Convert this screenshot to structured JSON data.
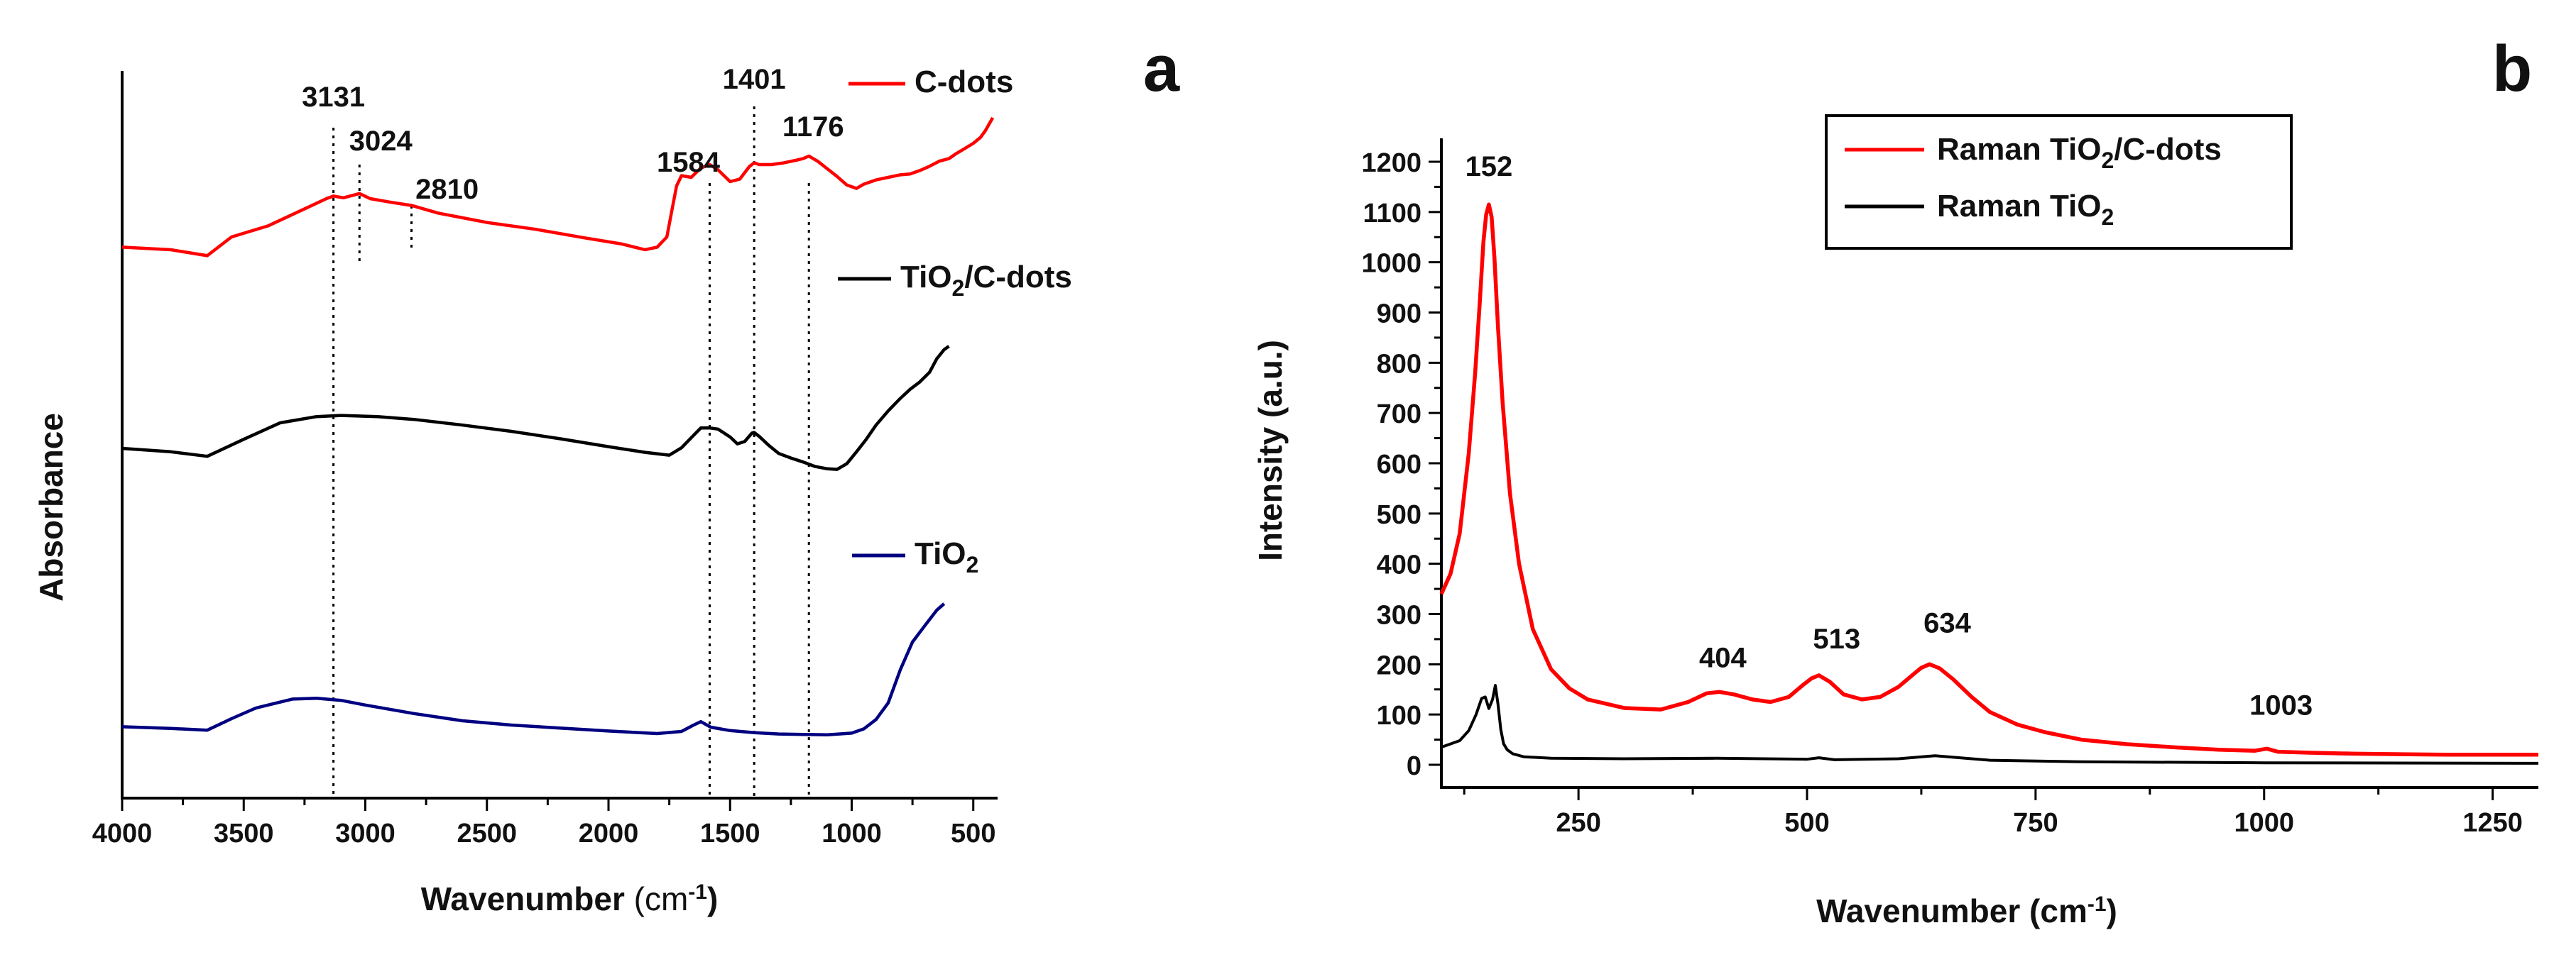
{
  "chart_data": [
    {
      "type": "line",
      "panel_label": "a",
      "title": "",
      "xlabel": "Wavenumber",
      "xunit_base": "(cm",
      "xunit_sup": "-1",
      "xunit_end": ")",
      "ylabel": "Absorbance",
      "xlim": [
        4000,
        400
      ],
      "xticks": [
        4000,
        3500,
        3000,
        2500,
        2000,
        1500,
        1000,
        500
      ],
      "xtick_labels": [
        "4000",
        "3500",
        "3000",
        "2500",
        "2000",
        "1500",
        "1000",
        "500"
      ],
      "ylim": [
        0,
        100
      ],
      "series": [
        {
          "name": "C-dots",
          "legend_base": "C-dots",
          "legend_sub": "",
          "legend_end": "",
          "color": "#ff0000",
          "x": [
            4000,
            3800,
            3650,
            3550,
            3400,
            3250,
            3160,
            3131,
            3090,
            3050,
            3024,
            2980,
            2900,
            2810,
            2700,
            2500,
            2300,
            2100,
            1950,
            1850,
            1800,
            1760,
            1740,
            1720,
            1700,
            1660,
            1620,
            1584,
            1550,
            1500,
            1460,
            1420,
            1401,
            1380,
            1330,
            1280,
            1230,
            1200,
            1176,
            1140,
            1100,
            1060,
            1020,
            980,
            950,
            900,
            850,
            800,
            760,
            720,
            680,
            640,
            600,
            570,
            540,
            500,
            470,
            450,
            430,
            420
          ],
          "y": [
            84.3,
            84,
            83.3,
            85.5,
            86.8,
            88.8,
            90,
            90.3,
            90.1,
            90.4,
            90.6,
            90,
            89.6,
            89.2,
            88.3,
            87.2,
            86.4,
            85.4,
            84.7,
            84,
            84.3,
            85.5,
            88.5,
            91.5,
            92.7,
            92.5,
            93.6,
            94,
            93.4,
            92,
            92.3,
            93.8,
            94.2,
            94,
            94,
            94.2,
            94.5,
            94.7,
            95,
            94.4,
            93.5,
            92.6,
            91.6,
            91.2,
            91.7,
            92.2,
            92.5,
            92.8,
            92.9,
            93.3,
            93.8,
            94.4,
            94.7,
            95.3,
            95.8,
            96.5,
            97.2,
            98,
            99,
            99.5
          ]
        },
        {
          "name": "TiO2/C-dots",
          "legend_base": "TiO",
          "legend_sub": "2",
          "legend_end": "/C-dots",
          "color": "#000000",
          "x": [
            4000,
            3800,
            3650,
            3500,
            3350,
            3200,
            3100,
            2950,
            2800,
            2600,
            2400,
            2200,
            2000,
            1850,
            1750,
            1700,
            1650,
            1620,
            1584,
            1550,
            1500,
            1470,
            1440,
            1410,
            1401,
            1380,
            1340,
            1300,
            1250,
            1200,
            1150,
            1100,
            1060,
            1020,
            980,
            940,
            900,
            850,
            800,
            760,
            720,
            680,
            650,
            620,
            600
          ],
          "y": [
            51,
            50.4,
            49.6,
            52.6,
            55.5,
            56.6,
            56.8,
            56.6,
            56.1,
            55.1,
            54,
            52.7,
            51.3,
            50.3,
            49.8,
            51.1,
            53.3,
            54.6,
            54.6,
            54.4,
            53,
            51.8,
            52.2,
            53.7,
            53.8,
            53.1,
            51.5,
            50.1,
            49.3,
            48.6,
            47.8,
            47.4,
            47.3,
            48.3,
            50.4,
            52.6,
            55.1,
            57.6,
            59.8,
            61.4,
            62.7,
            64.4,
            66.8,
            68.4,
            69
          ]
        },
        {
          "name": "TiO2",
          "legend_base": "TiO",
          "legend_sub": "2",
          "legend_end": "",
          "color": "#000080",
          "x": [
            4000,
            3800,
            3650,
            3550,
            3450,
            3300,
            3200,
            3100,
            3000,
            2800,
            2600,
            2400,
            2200,
            2000,
            1800,
            1700,
            1650,
            1620,
            1580,
            1500,
            1400,
            1300,
            1200,
            1100,
            1000,
            950,
            900,
            850,
            800,
            750,
            700,
            650,
            620
          ],
          "y": [
            12.6,
            12.2,
            11.8,
            14.5,
            17,
            19.1,
            19.3,
            18.8,
            17.7,
            15.7,
            14,
            13,
            12.3,
            11.6,
            11,
            11.5,
            13,
            13.8,
            12.5,
            11.7,
            11.2,
            10.9,
            10.8,
            10.7,
            11.1,
            12.1,
            14.3,
            18.2,
            26,
            32.5,
            36.3,
            40,
            41.5
          ]
        }
      ],
      "annotations": [
        {
          "label": "3131",
          "x": 3131
        },
        {
          "label": "3024",
          "x": 3024
        },
        {
          "label": "2810",
          "x": 2810
        },
        {
          "label": "1584",
          "x": 1584
        },
        {
          "label": "1401",
          "x": 1401
        },
        {
          "label": "1176",
          "x": 1176
        }
      ],
      "legend": "inline",
      "grid": false
    },
    {
      "type": "line",
      "panel_label": "b",
      "title": "",
      "xlabel": "Wavenumber",
      "xunit_base": "(cm",
      "xunit_sup": "-1",
      "xunit_end": ")",
      "ylabel": "Intensity (a.u.)",
      "xlim": [
        100,
        1300
      ],
      "ylim": [
        -50,
        1250
      ],
      "xticks": [
        250,
        500,
        750,
        1000,
        1250
      ],
      "xtick_labels": [
        "250",
        "500",
        "750",
        "1000",
        "1250"
      ],
      "yticks": [
        0,
        100,
        200,
        300,
        400,
        500,
        600,
        700,
        800,
        900,
        1000,
        1100,
        1200
      ],
      "ytick_labels": [
        "0",
        "100",
        "200",
        "300",
        "400",
        "500",
        "600",
        "700",
        "800",
        "900",
        "1000",
        "1100",
        "1200"
      ],
      "series": [
        {
          "name": "Raman TiO2/C-dots",
          "legend_base": "Raman TiO",
          "legend_sub": "2",
          "legend_end": "/C-dots",
          "color": "#ff0000",
          "x": [
            100,
            110,
            120,
            130,
            137,
            142,
            146,
            149,
            152,
            155,
            158,
            162,
            167,
            175,
            185,
            200,
            220,
            240,
            260,
            300,
            340,
            370,
            390,
            404,
            420,
            440,
            460,
            480,
            495,
            505,
            513,
            525,
            540,
            560,
            580,
            600,
            615,
            625,
            634,
            645,
            660,
            680,
            700,
            730,
            760,
            800,
            850,
            900,
            950,
            990,
            1003,
            1015,
            1050,
            1100,
            1150,
            1200,
            1250,
            1300
          ],
          "y": [
            340,
            380,
            460,
            620,
            780,
            920,
            1040,
            1095,
            1115,
            1090,
            1010,
            870,
            720,
            540,
            400,
            270,
            190,
            152,
            130,
            113,
            110,
            125,
            142,
            145,
            140,
            130,
            125,
            135,
            158,
            172,
            178,
            165,
            140,
            130,
            135,
            155,
            178,
            193,
            200,
            192,
            170,
            135,
            105,
            80,
            65,
            50,
            41,
            35,
            30,
            28,
            32,
            26,
            24,
            22,
            21,
            20,
            20,
            20
          ]
        },
        {
          "name": "Raman TiO2",
          "legend_base": "Raman TiO",
          "legend_sub": "2",
          "legend_end": "",
          "color": "#000000",
          "x": [
            100,
            120,
            130,
            138,
            144,
            148,
            152,
            156,
            159,
            162,
            165,
            168,
            172,
            178,
            190,
            220,
            300,
            400,
            500,
            513,
            530,
            600,
            640,
            660,
            700,
            800,
            1000,
            1300
          ],
          "y": [
            35,
            48,
            68,
            100,
            132,
            135,
            112,
            130,
            158,
            120,
            70,
            42,
            30,
            22,
            16,
            13,
            12,
            13,
            11,
            14,
            10,
            12,
            18,
            15,
            9,
            6,
            4,
            3
          ]
        }
      ],
      "annotations": [
        {
          "label": "152",
          "x": 152,
          "y": 1115
        },
        {
          "label": "404",
          "x": 404,
          "y": 145
        },
        {
          "label": "513",
          "x": 513,
          "y": 178
        },
        {
          "label": "634",
          "x": 634,
          "y": 200
        },
        {
          "label": "1003",
          "x": 1003,
          "y": 32
        }
      ],
      "legend": "top-center",
      "grid": false
    }
  ]
}
